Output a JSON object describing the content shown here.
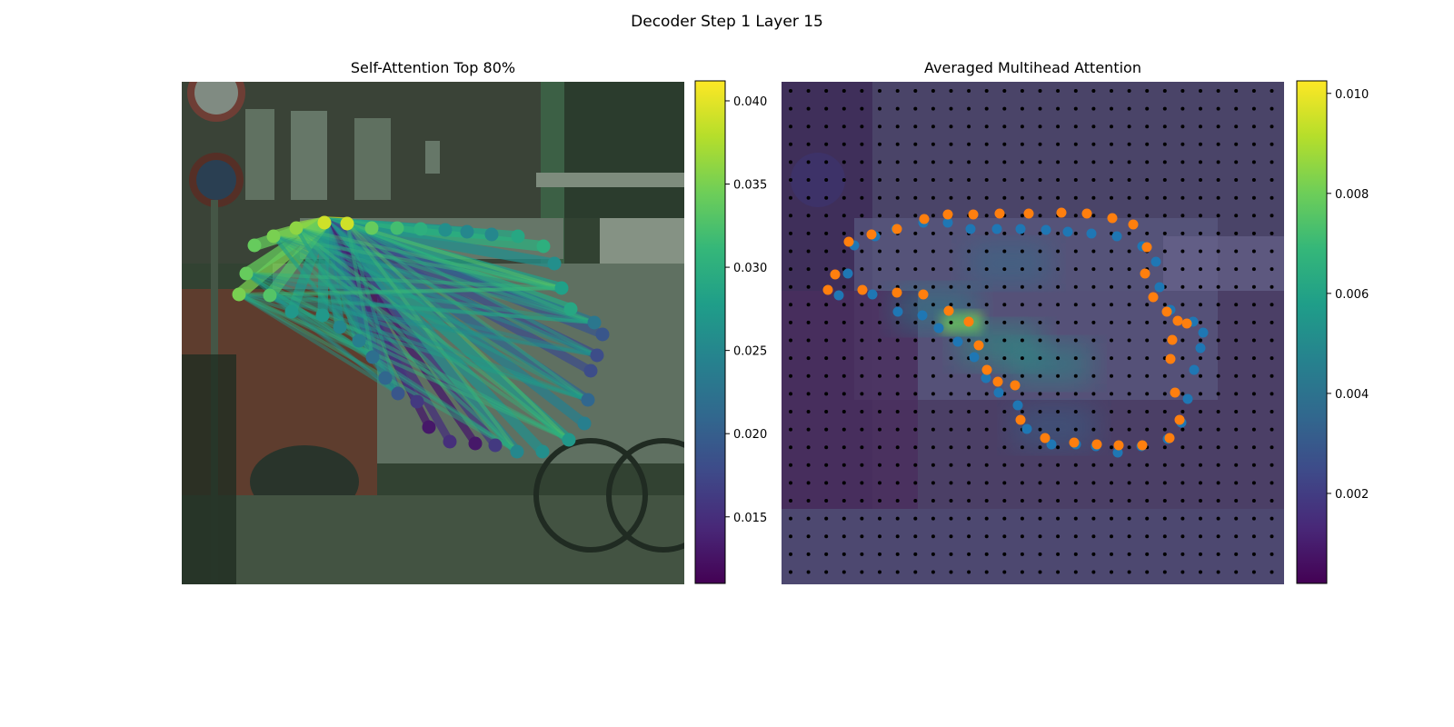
{
  "figure": {
    "suptitle": "Decoder Step 1 Layer 15"
  },
  "colors": {
    "viridis": [
      "#440154",
      "#482878",
      "#3e4a89",
      "#31688e",
      "#26828e",
      "#1f9e89",
      "#35b779",
      "#6ece58",
      "#b5de2b",
      "#fde725"
    ],
    "point_blue": "#1f77b4",
    "point_orange": "#ff7f0e",
    "grid_dot": "#000000"
  },
  "chart_data": [
    {
      "type": "scatter",
      "subtype": "attention-graph-over-image",
      "title": "Self-Attention Top 80%",
      "background": "street photo: red car, white van, bicycles, brick building, no-parking sign",
      "colorbar": {
        "ticks": [
          "0.015",
          "0.020",
          "0.025",
          "0.030",
          "0.035",
          "0.040"
        ],
        "range": [
          0.011,
          0.0412
        ]
      },
      "grid": false,
      "source_point_index": 3,
      "points": [
        {
          "x": 80,
          "y": 180,
          "v": 0.034
        },
        {
          "x": 101,
          "y": 170,
          "v": 0.035
        },
        {
          "x": 126,
          "y": 161,
          "v": 0.036
        },
        {
          "x": 157,
          "y": 155,
          "v": 0.039
        },
        {
          "x": 182,
          "y": 156,
          "v": 0.039
        },
        {
          "x": 209,
          "y": 161,
          "v": 0.034
        },
        {
          "x": 237,
          "y": 161,
          "v": 0.032
        },
        {
          "x": 263,
          "y": 162,
          "v": 0.03
        },
        {
          "x": 290,
          "y": 163,
          "v": 0.026
        },
        {
          "x": 314,
          "y": 165,
          "v": 0.025
        },
        {
          "x": 341,
          "y": 168,
          "v": 0.025
        },
        {
          "x": 370,
          "y": 170,
          "v": 0.029
        },
        {
          "x": 398,
          "y": 181,
          "v": 0.03
        },
        {
          "x": 410,
          "y": 200,
          "v": 0.026
        },
        {
          "x": 418,
          "y": 227,
          "v": 0.028
        },
        {
          "x": 428,
          "y": 250,
          "v": 0.029
        },
        {
          "x": 454,
          "y": 265,
          "v": 0.023
        },
        {
          "x": 463,
          "y": 278,
          "v": 0.019
        },
        {
          "x": 457,
          "y": 301,
          "v": 0.018
        },
        {
          "x": 450,
          "y": 318,
          "v": 0.018
        },
        {
          "x": 447,
          "y": 350,
          "v": 0.021
        },
        {
          "x": 443,
          "y": 376,
          "v": 0.024
        },
        {
          "x": 426,
          "y": 394,
          "v": 0.027
        },
        {
          "x": 397,
          "y": 407,
          "v": 0.026
        },
        {
          "x": 369,
          "y": 407,
          "v": 0.025
        },
        {
          "x": 345,
          "y": 400,
          "v": 0.016
        },
        {
          "x": 323,
          "y": 398,
          "v": 0.013
        },
        {
          "x": 295,
          "y": 396,
          "v": 0.015
        },
        {
          "x": 272,
          "y": 380,
          "v": 0.013
        },
        {
          "x": 259,
          "y": 352,
          "v": 0.016
        },
        {
          "x": 238,
          "y": 343,
          "v": 0.019
        },
        {
          "x": 224,
          "y": 326,
          "v": 0.021
        },
        {
          "x": 210,
          "y": 303,
          "v": 0.022
        },
        {
          "x": 195,
          "y": 285,
          "v": 0.024
        },
        {
          "x": 174,
          "y": 270,
          "v": 0.025
        },
        {
          "x": 155,
          "y": 257,
          "v": 0.027
        },
        {
          "x": 121,
          "y": 253,
          "v": 0.027
        },
        {
          "x": 97,
          "y": 235,
          "v": 0.033
        },
        {
          "x": 63,
          "y": 234,
          "v": 0.035
        },
        {
          "x": 71,
          "y": 211,
          "v": 0.034
        }
      ]
    },
    {
      "type": "heatmap",
      "subtype": "attention-heatmap-over-image",
      "title": "Averaged Multihead Attention",
      "colorbar": {
        "ticks": [
          "0.002",
          "0.004",
          "0.006",
          "0.008",
          "0.010"
        ],
        "range": [
          0.0002,
          0.01025
        ]
      },
      "grid": false,
      "grid_points": {
        "columns": 28,
        "rows": 28
      },
      "hotspots": [
        {
          "x": 198,
          "y": 265,
          "v": 0.0085
        },
        {
          "x": 240,
          "y": 290,
          "v": 0.006
        },
        {
          "x": 295,
          "y": 310,
          "v": 0.0055
        },
        {
          "x": 170,
          "y": 250,
          "v": 0.005
        },
        {
          "x": 250,
          "y": 200,
          "v": 0.004
        },
        {
          "x": 300,
          "y": 380,
          "v": 0.0035
        }
      ],
      "series": [
        {
          "color": "#1f77b4",
          "points": [
            [
              80,
              180
            ],
            [
              73,
              211
            ],
            [
              63,
              235
            ],
            [
              100,
              234
            ],
            [
              128,
              253
            ],
            [
              155,
              257
            ],
            [
              173,
              271
            ],
            [
              194,
              286
            ],
            [
              212,
              303
            ],
            [
              225,
              326
            ],
            [
              239,
              342
            ],
            [
              260,
              356
            ],
            [
              270,
              382
            ],
            [
              297,
              399
            ],
            [
              324,
              399
            ],
            [
              346,
              401
            ],
            [
              370,
              408
            ],
            [
              396,
              401
            ],
            [
              425,
              393
            ],
            [
              440,
              375
            ],
            [
              447,
              349
            ],
            [
              454,
              317
            ],
            [
              461,
              293
            ],
            [
              464,
              276
            ],
            [
              453,
              264
            ],
            [
              428,
              251
            ],
            [
              416,
              226
            ],
            [
              412,
              198
            ],
            [
              397,
              181
            ],
            [
              369,
              170
            ],
            [
              341,
              167
            ],
            [
              315,
              165
            ],
            [
              291,
              163
            ],
            [
              263,
              162
            ],
            [
              237,
              162
            ],
            [
              208,
              162
            ],
            [
              183,
              155
            ],
            [
              156,
              155
            ],
            [
              126,
              162
            ],
            [
              103,
              170
            ]
          ]
        },
        {
          "color": "#ff7f0e",
          "points": [
            [
              74,
              176
            ],
            [
              99,
              168
            ],
            [
              127,
              162
            ],
            [
              157,
              151
            ],
            [
              183,
              146
            ],
            [
              211,
              146
            ],
            [
              240,
              145
            ],
            [
              272,
              145
            ],
            [
              308,
              144
            ],
            [
              336,
              145
            ],
            [
              364,
              150
            ],
            [
              387,
              157
            ],
            [
              402,
              182
            ],
            [
              400,
              211
            ],
            [
              409,
              237
            ],
            [
              424,
              253
            ],
            [
              436,
              263
            ],
            [
              446,
              266
            ],
            [
              430,
              284
            ],
            [
              428,
              305
            ],
            [
              433,
              342
            ],
            [
              438,
              372
            ],
            [
              427,
              392
            ],
            [
              397,
              400
            ],
            [
              371,
              400
            ],
            [
              347,
              399
            ],
            [
              322,
              397
            ],
            [
              290,
              392
            ],
            [
              263,
              372
            ],
            [
              257,
              334
            ],
            [
              238,
              330
            ],
            [
              226,
              317
            ],
            [
              217,
              290
            ],
            [
              206,
              264
            ],
            [
              184,
              252
            ],
            [
              156,
              234
            ],
            [
              127,
              232
            ],
            [
              89,
              229
            ],
            [
              59,
              212
            ],
            [
              51,
              229
            ]
          ]
        }
      ]
    }
  ]
}
